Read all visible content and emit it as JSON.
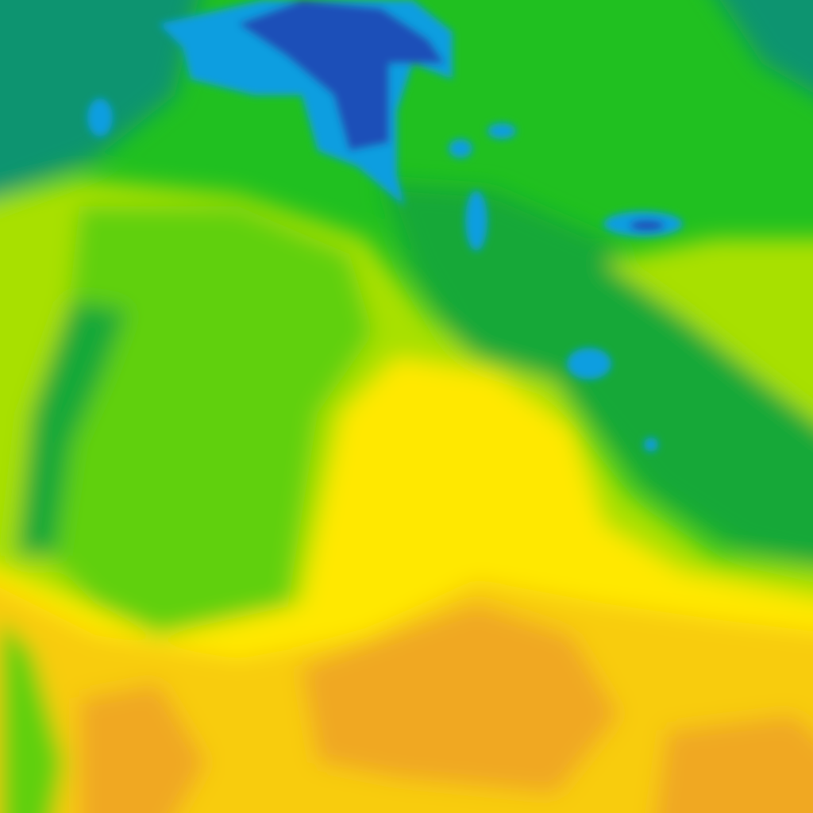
{
  "map": {
    "type": "weather-heatmap-tile",
    "legend_visible": false,
    "palette": {
      "deep_blue": "#1a50b8",
      "blue": "#0a9ee0",
      "teal_green": "#0b9470",
      "dark_green": "#12a838",
      "green": "#20c020",
      "light_green": "#60d010",
      "yellow_green": "#a8e000",
      "yellow": "#ffe800",
      "gold": "#f8cc10",
      "orange": "#f0a824"
    }
  }
}
